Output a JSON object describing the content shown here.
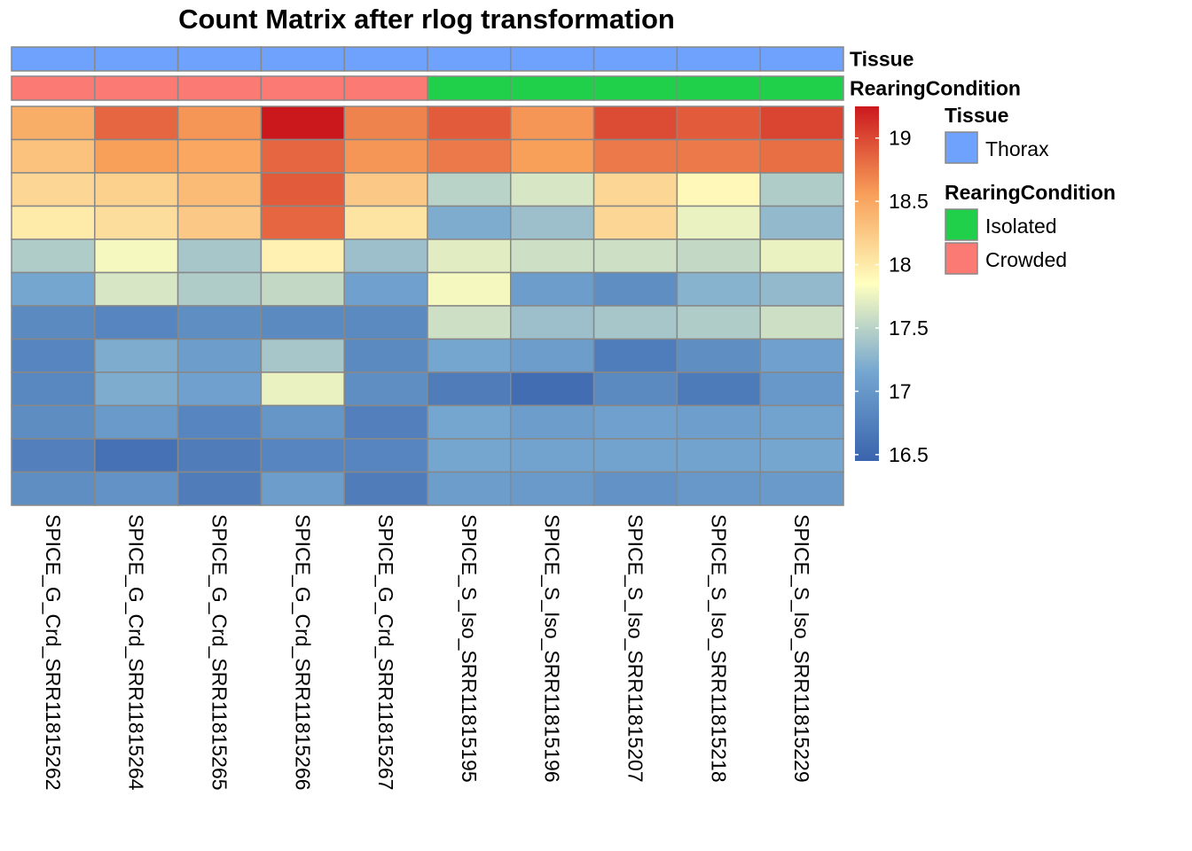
{
  "chart_data": {
    "type": "heatmap",
    "title": "Count Matrix after rlog transformation",
    "columns": [
      "SPICE_G_Crd_SRR11815262",
      "SPICE_G_Crd_SRR11815264",
      "SPICE_G_Crd_SRR11815265",
      "SPICE_G_Crd_SRR11815266",
      "SPICE_G_Crd_SRR11815267",
      "SPICE_S_Iso_SRR11815195",
      "SPICE_S_Iso_SRR11815196",
      "SPICE_S_Iso_SRR11815207",
      "SPICE_S_Iso_SRR11815218",
      "SPICE_S_Iso_SRR11815229"
    ],
    "annotation_tracks": [
      {
        "name": "Tissue",
        "values": [
          "Thorax",
          "Thorax",
          "Thorax",
          "Thorax",
          "Thorax",
          "Thorax",
          "Thorax",
          "Thorax",
          "Thorax",
          "Thorax"
        ],
        "levels": [
          {
            "label": "Thorax",
            "color": "#6fa2fc"
          }
        ]
      },
      {
        "name": "RearingCondition",
        "values": [
          "Crowded",
          "Crowded",
          "Crowded",
          "Crowded",
          "Crowded",
          "Isolated",
          "Isolated",
          "Isolated",
          "Isolated",
          "Isolated"
        ],
        "levels": [
          {
            "label": "Isolated",
            "color": "#20d04b"
          },
          {
            "label": "Crowded",
            "color": "#fb7b74"
          }
        ]
      }
    ],
    "values": [
      [
        18.45,
        18.85,
        18.6,
        19.25,
        18.7,
        18.9,
        18.6,
        18.98,
        18.9,
        19.02
      ],
      [
        18.3,
        18.55,
        18.5,
        18.85,
        18.6,
        18.75,
        18.55,
        18.75,
        18.75,
        18.8
      ],
      [
        18.15,
        18.2,
        18.35,
        18.9,
        18.25,
        17.5,
        17.65,
        18.15,
        17.9,
        17.45
      ],
      [
        18.0,
        18.1,
        18.25,
        18.85,
        18.05,
        17.2,
        17.35,
        18.15,
        17.75,
        17.3
      ],
      [
        17.45,
        17.8,
        17.4,
        17.95,
        17.35,
        17.7,
        17.6,
        17.6,
        17.55,
        17.75
      ],
      [
        17.15,
        17.65,
        17.45,
        17.55,
        17.1,
        17.8,
        17.05,
        16.9,
        17.25,
        17.3
      ],
      [
        16.85,
        16.8,
        16.9,
        16.85,
        16.85,
        17.6,
        17.35,
        17.4,
        17.45,
        17.6
      ],
      [
        16.8,
        17.2,
        17.05,
        17.4,
        16.85,
        17.15,
        17.05,
        16.7,
        16.9,
        17.1
      ],
      [
        16.82,
        17.2,
        17.1,
        17.75,
        16.9,
        16.72,
        16.55,
        16.85,
        16.68,
        17.0
      ],
      [
        16.88,
        17.02,
        16.8,
        16.98,
        16.75,
        17.15,
        17.05,
        17.1,
        17.08,
        17.12
      ],
      [
        16.75,
        16.6,
        16.72,
        16.8,
        16.8,
        17.15,
        17.12,
        17.12,
        17.12,
        17.15
      ],
      [
        16.9,
        16.95,
        16.72,
        17.05,
        16.72,
        17.05,
        17.02,
        16.95,
        17.0,
        17.02
      ]
    ],
    "color_scale": {
      "min": 16.45,
      "max": 19.25,
      "colors": [
        "#3a64ad",
        "#74a6d0",
        "#ffffbf",
        "#f8a05a",
        "#cb181d"
      ]
    },
    "legend_ticks": [
      16.5,
      17,
      17.5,
      18,
      18.5,
      19
    ],
    "legend_tick_labels": [
      "16.5",
      "17",
      "17.5",
      "18",
      "18.5",
      "19"
    ],
    "cell_border_color": "#888888"
  }
}
